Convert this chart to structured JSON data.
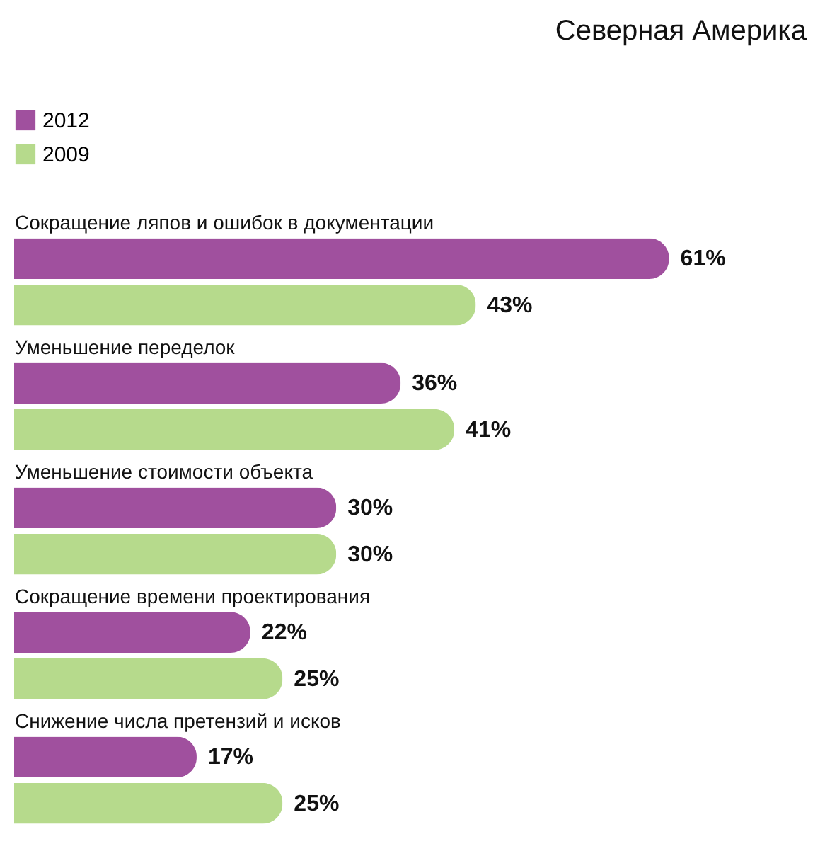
{
  "chart_data": {
    "type": "bar",
    "orientation": "horizontal",
    "title": "Северная Америка",
    "categories": [
      "Сокращение ляпов и ошибок в документации",
      "Уменьшение переделок",
      "Уменьшение стоимости объекта",
      "Сокращение времени проектирования",
      "Снижение числа претензий и исков"
    ],
    "series": [
      {
        "name": "2012",
        "color": "#a0509e",
        "values": [
          61,
          36,
          30,
          22,
          17
        ],
        "value_labels": [
          "61%",
          "36%",
          "30%",
          "22%",
          "17%"
        ]
      },
      {
        "name": "2009",
        "color": "#b6da8c",
        "values": [
          43,
          41,
          30,
          25,
          25
        ],
        "value_labels": [
          "43%",
          "41%",
          "30%",
          "25%",
          "25%"
        ]
      }
    ],
    "legend": "top left",
    "grid": false
  }
}
